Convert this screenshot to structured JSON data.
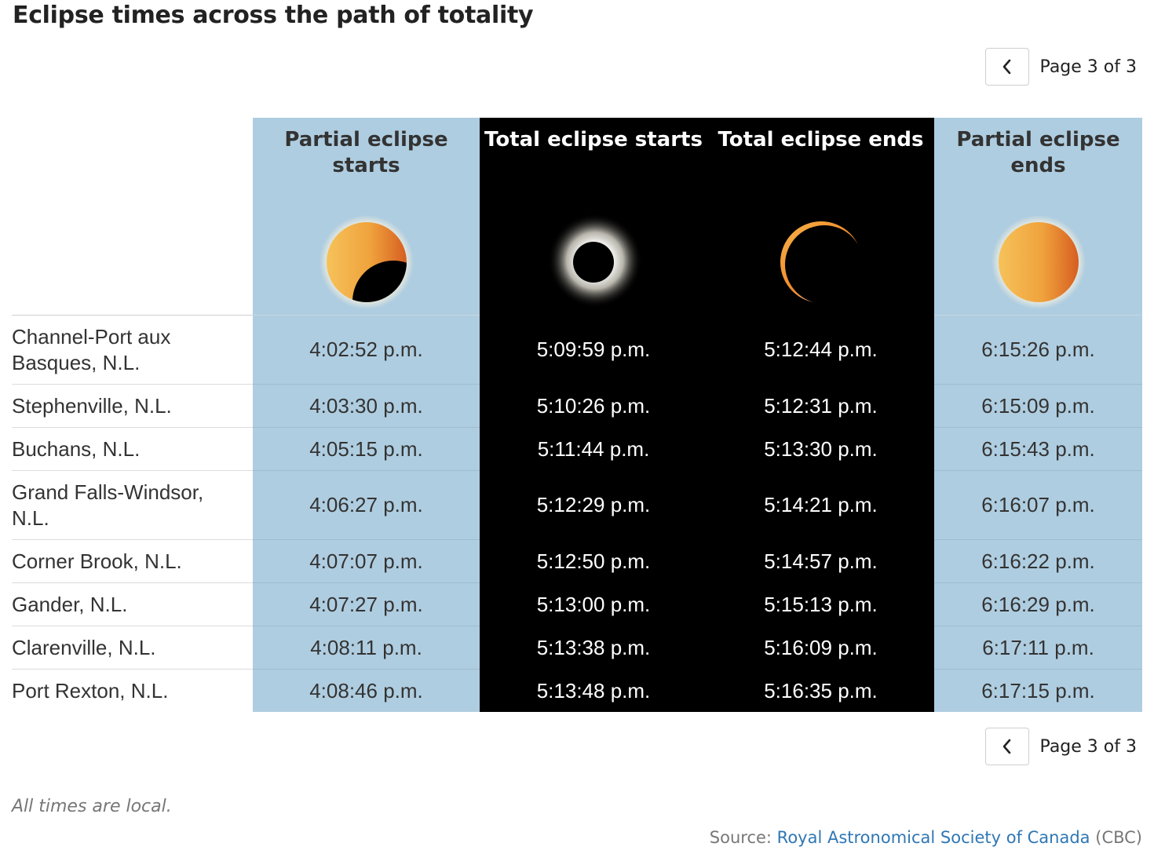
{
  "title": "Eclipse times across the path of totality",
  "pagination": {
    "prev_icon": "chevron-left-icon",
    "label": "Page 3 of 3"
  },
  "columns": [
    {
      "label": "Partial eclipse starts",
      "icon": "partial-eclipse-start-icon"
    },
    {
      "label": "Total eclipse starts",
      "icon": "total-eclipse-corona-icon"
    },
    {
      "label": "Total eclipse ends",
      "icon": "total-eclipse-end-crescent-icon"
    },
    {
      "label": "Partial eclipse ends",
      "icon": "full-sun-icon"
    }
  ],
  "rows": [
    {
      "city": "Channel-Port aux Basques, N.L.",
      "partial_start": "4:02:52 p.m.",
      "total_start": "5:09:59 p.m.",
      "total_end": "5:12:44 p.m.",
      "partial_end": "6:15:26 p.m."
    },
    {
      "city": "Stephenville, N.L.",
      "partial_start": "4:03:30 p.m.",
      "total_start": "5:10:26 p.m.",
      "total_end": "5:12:31 p.m.",
      "partial_end": "6:15:09 p.m."
    },
    {
      "city": "Buchans, N.L.",
      "partial_start": "4:05:15 p.m.",
      "total_start": "5:11:44 p.m.",
      "total_end": "5:13:30 p.m.",
      "partial_end": "6:15:43 p.m."
    },
    {
      "city": "Grand Falls-Windsor, N.L.",
      "partial_start": "4:06:27 p.m.",
      "total_start": "5:12:29 p.m.",
      "total_end": "5:14:21 p.m.",
      "partial_end": "6:16:07 p.m."
    },
    {
      "city": "Corner Brook, N.L.",
      "partial_start": "4:07:07 p.m.",
      "total_start": "5:12:50 p.m.",
      "total_end": "5:14:57 p.m.",
      "partial_end": "6:16:22 p.m."
    },
    {
      "city": "Gander, N.L.",
      "partial_start": "4:07:27 p.m.",
      "total_start": "5:13:00 p.m.",
      "total_end": "5:15:13 p.m.",
      "partial_end": "6:16:29 p.m."
    },
    {
      "city": "Clarenville, N.L.",
      "partial_start": "4:08:11 p.m.",
      "total_start": "5:13:38 p.m.",
      "total_end": "5:16:09 p.m.",
      "partial_end": "6:17:11 p.m."
    },
    {
      "city": "Port Rexton, N.L.",
      "partial_start": "4:08:46 p.m.",
      "total_start": "5:13:48 p.m.",
      "total_end": "5:16:35 p.m.",
      "partial_end": "6:17:15 p.m."
    }
  ],
  "footnote": "All times are local.",
  "source": {
    "prefix": "Source:",
    "link_text": "Royal Astronomical Society of Canada",
    "suffix": "(CBC)"
  },
  "colors": {
    "light_column": "#afcde0",
    "dark_column": "#000000",
    "link": "#2f77b4"
  }
}
